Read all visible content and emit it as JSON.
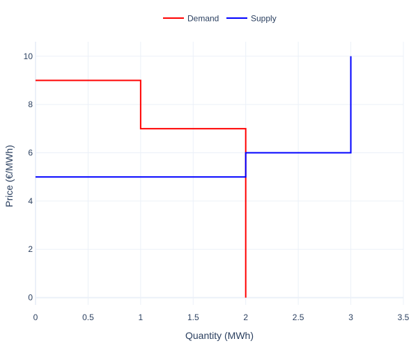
{
  "chart_data": {
    "type": "line",
    "line_shape": "step",
    "title": "",
    "xlabel": "Quantity (MWh)",
    "ylabel": "Price (€/MWh)",
    "xlim": [
      0,
      3.5
    ],
    "ylim": [
      -0.3,
      10.6
    ],
    "x_ticks": [
      0,
      0.5,
      1,
      1.5,
      2,
      2.5,
      3,
      3.5
    ],
    "x_tick_labels": [
      "0",
      "0.5",
      "1",
      "1.5",
      "2",
      "2.5",
      "3",
      "3.5"
    ],
    "y_ticks": [
      0,
      2,
      4,
      6,
      8,
      10
    ],
    "y_tick_labels": [
      "0",
      "2",
      "4",
      "6",
      "8",
      "10"
    ],
    "grid": true,
    "legend_position": "top-center",
    "series": [
      {
        "name": "Demand",
        "color": "#ff0000",
        "points": [
          {
            "x": 0,
            "y": 9
          },
          {
            "x": 1,
            "y": 9
          },
          {
            "x": 1,
            "y": 7
          },
          {
            "x": 2,
            "y": 7
          },
          {
            "x": 2,
            "y": 0
          }
        ]
      },
      {
        "name": "Supply",
        "color": "#0000ff",
        "points": [
          {
            "x": 0,
            "y": 5
          },
          {
            "x": 2,
            "y": 5
          },
          {
            "x": 2,
            "y": 6
          },
          {
            "x": 3,
            "y": 6
          },
          {
            "x": 3,
            "y": 10
          }
        ]
      }
    ]
  }
}
